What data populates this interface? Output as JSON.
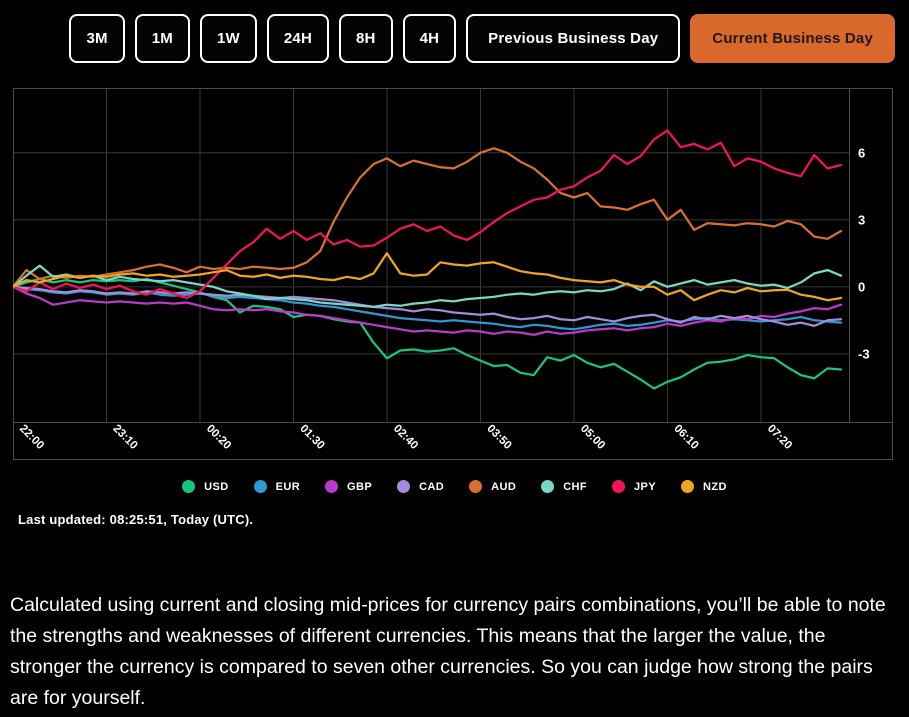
{
  "toolbar": {
    "buttons": [
      {
        "label": "3M",
        "active": false
      },
      {
        "label": "1M",
        "active": false
      },
      {
        "label": "1W",
        "active": false
      },
      {
        "label": "24H",
        "active": false
      },
      {
        "label": "8H",
        "active": false
      },
      {
        "label": "4H",
        "active": false
      },
      {
        "label": "Previous Business Day",
        "active": false
      },
      {
        "label": "Current Business Day",
        "active": true
      }
    ]
  },
  "chart_data": {
    "type": "line",
    "title": "Currency strength lines, value vs time (UTC)",
    "x_tick_labels": [
      "22:00",
      "23:10",
      "00:20",
      "01:30",
      "02:40",
      "03:50",
      "05:00",
      "06:10",
      "07:20"
    ],
    "y_ticks": [
      6,
      3,
      0,
      -3
    ],
    "y_tick_labels": [
      "6",
      "3",
      "0",
      "-3"
    ],
    "ylim": [
      -6.05,
      8.9
    ],
    "x_start": "22:00",
    "x_end": "08:20",
    "x_minutes_step": 10,
    "minutes_per_tick": 70,
    "grid": true,
    "legend_position": "bottom",
    "series": [
      {
        "name": "USD",
        "color": "#19C57C",
        "values": [
          0,
          0.2,
          0.35,
          0.2,
          0.3,
          0.2,
          0.3,
          0.25,
          0.3,
          0.25,
          0.35,
          0.2,
          0.05,
          -0.1,
          -0.25,
          -0.45,
          -0.6,
          -1.15,
          -0.85,
          -0.9,
          -1.0,
          -1.35,
          -1.25,
          -1.3,
          -1.45,
          -1.55,
          -1.6,
          -2.5,
          -3.2,
          -2.85,
          -2.8,
          -2.9,
          -2.85,
          -2.75,
          -3.05,
          -3.3,
          -3.55,
          -3.5,
          -3.85,
          -3.95,
          -3.15,
          -3.3,
          -3.05,
          -3.4,
          -3.6,
          -3.45,
          -3.8,
          -4.15,
          -4.55,
          -4.25,
          -4.05,
          -3.7,
          -3.4,
          -3.35,
          -3.25,
          -3.05,
          -3.15,
          -3.2,
          -3.6,
          -3.95,
          -4.1,
          -3.65,
          -3.7
        ]
      },
      {
        "name": "EUR",
        "color": "#2E97D4",
        "values": [
          0,
          -0.1,
          -0.15,
          -0.25,
          -0.3,
          -0.2,
          -0.25,
          -0.35,
          -0.3,
          -0.35,
          -0.25,
          -0.35,
          -0.4,
          -0.35,
          -0.3,
          -0.4,
          -0.5,
          -0.45,
          -0.5,
          -0.55,
          -0.6,
          -0.7,
          -0.75,
          -0.85,
          -0.9,
          -1.0,
          -1.1,
          -1.2,
          -1.3,
          -1.4,
          -1.45,
          -1.5,
          -1.55,
          -1.5,
          -1.55,
          -1.6,
          -1.65,
          -1.75,
          -1.8,
          -1.7,
          -1.75,
          -1.85,
          -1.9,
          -1.8,
          -1.7,
          -1.65,
          -1.75,
          -1.7,
          -1.6,
          -1.5,
          -1.55,
          -1.45,
          -1.4,
          -1.5,
          -1.45,
          -1.5,
          -1.55,
          -1.5,
          -1.45,
          -1.35,
          -1.5,
          -1.55,
          -1.6
        ]
      },
      {
        "name": "GBP",
        "color": "#B93ACB",
        "values": [
          0,
          -0.3,
          -0.5,
          -0.8,
          -0.7,
          -0.6,
          -0.65,
          -0.7,
          -0.65,
          -0.7,
          -0.75,
          -0.7,
          -0.75,
          -0.7,
          -0.85,
          -1.0,
          -1.05,
          -1.0,
          -1.05,
          -1.0,
          -1.1,
          -1.15,
          -1.25,
          -1.3,
          -1.4,
          -1.5,
          -1.6,
          -1.7,
          -1.8,
          -1.9,
          -2.0,
          -1.95,
          -2.0,
          -2.05,
          -1.95,
          -2.0,
          -2.1,
          -2.0,
          -2.05,
          -2.15,
          -2.0,
          -2.1,
          -2.05,
          -1.95,
          -1.9,
          -1.85,
          -1.95,
          -1.85,
          -1.8,
          -1.65,
          -1.75,
          -1.6,
          -1.5,
          -1.55,
          -1.4,
          -1.45,
          -1.3,
          -1.35,
          -1.2,
          -1.1,
          -0.95,
          -1.0,
          -0.8
        ]
      },
      {
        "name": "CAD",
        "color": "#A58BD9",
        "values": [
          0,
          -0.05,
          -0.1,
          -0.2,
          -0.25,
          -0.15,
          -0.2,
          -0.3,
          -0.25,
          -0.3,
          -0.2,
          -0.25,
          -0.3,
          -0.25,
          -0.3,
          -0.35,
          -0.4,
          -0.35,
          -0.4,
          -0.45,
          -0.5,
          -0.45,
          -0.5,
          -0.55,
          -0.6,
          -0.7,
          -0.8,
          -0.9,
          -0.95,
          -1.0,
          -1.1,
          -1.0,
          -1.05,
          -1.15,
          -1.2,
          -1.25,
          -1.2,
          -1.35,
          -1.45,
          -1.4,
          -1.3,
          -1.45,
          -1.5,
          -1.35,
          -1.45,
          -1.55,
          -1.4,
          -1.3,
          -1.25,
          -1.45,
          -1.6,
          -1.35,
          -1.45,
          -1.3,
          -1.4,
          -1.3,
          -1.45,
          -1.55,
          -1.7,
          -1.6,
          -1.75,
          -1.5,
          -1.45
        ]
      },
      {
        "name": "AUD",
        "color": "#D8702E",
        "values": [
          0,
          0.75,
          0.35,
          0.5,
          0.4,
          0.5,
          0.45,
          0.55,
          0.65,
          0.75,
          0.9,
          1.0,
          0.85,
          0.65,
          0.9,
          0.8,
          0.85,
          0.8,
          0.9,
          0.85,
          0.8,
          0.85,
          1.1,
          1.6,
          2.9,
          4.0,
          4.9,
          5.5,
          5.75,
          5.4,
          5.65,
          5.5,
          5.35,
          5.3,
          5.6,
          6.0,
          6.2,
          6.0,
          5.6,
          5.3,
          4.8,
          4.2,
          4.0,
          4.2,
          3.6,
          3.55,
          3.45,
          3.7,
          3.9,
          3.0,
          3.45,
          2.55,
          2.85,
          2.8,
          2.75,
          2.85,
          2.8,
          2.7,
          2.95,
          2.8,
          2.25,
          2.15,
          2.5
        ]
      },
      {
        "name": "CHF",
        "color": "#7BD7C5",
        "values": [
          0,
          0.5,
          0.95,
          0.45,
          0.55,
          0.4,
          0.5,
          0.3,
          0.45,
          0.35,
          0.3,
          0.25,
          0.3,
          0.2,
          0.1,
          0.0,
          -0.2,
          -0.3,
          -0.4,
          -0.55,
          -0.5,
          -0.55,
          -0.6,
          -0.7,
          -0.75,
          -0.8,
          -0.85,
          -0.9,
          -0.8,
          -0.85,
          -0.75,
          -0.7,
          -0.6,
          -0.65,
          -0.55,
          -0.5,
          -0.45,
          -0.35,
          -0.3,
          -0.35,
          -0.25,
          -0.2,
          -0.25,
          -0.15,
          -0.2,
          -0.1,
          0.15,
          -0.15,
          0.25,
          0.0,
          0.15,
          0.3,
          0.1,
          0.2,
          0.3,
          0.15,
          0.05,
          0.1,
          -0.05,
          0.2,
          0.6,
          0.75,
          0.5
        ]
      },
      {
        "name": "JPY",
        "color": "#F0145C",
        "values": [
          0,
          -0.2,
          0.2,
          -0.1,
          0.15,
          -0.05,
          0.1,
          -0.1,
          0.05,
          -0.2,
          -0.35,
          -0.1,
          -0.3,
          -0.5,
          -0.2,
          0.4,
          1.0,
          1.6,
          2.0,
          2.6,
          2.15,
          2.5,
          2.1,
          2.4,
          1.9,
          2.1,
          1.8,
          1.85,
          2.2,
          2.6,
          2.8,
          2.5,
          2.7,
          2.3,
          2.1,
          2.45,
          2.9,
          3.3,
          3.6,
          3.9,
          4.0,
          4.35,
          4.5,
          4.9,
          5.2,
          5.9,
          5.5,
          5.85,
          6.6,
          7.0,
          6.25,
          6.4,
          6.15,
          6.45,
          5.4,
          5.75,
          5.6,
          5.3,
          5.1,
          4.95,
          5.9,
          5.3,
          5.45
        ]
      },
      {
        "name": "NZD",
        "color": "#F0A51F",
        "values": [
          0,
          0.3,
          0.2,
          0.35,
          0.5,
          0.4,
          0.5,
          0.45,
          0.55,
          0.6,
          0.5,
          0.55,
          0.45,
          0.5,
          0.55,
          0.65,
          0.75,
          0.5,
          0.45,
          0.55,
          0.4,
          0.5,
          0.45,
          0.35,
          0.3,
          0.45,
          0.35,
          0.6,
          1.5,
          0.6,
          0.5,
          0.55,
          1.1,
          1.0,
          0.95,
          1.05,
          1.1,
          0.9,
          0.7,
          0.6,
          0.55,
          0.4,
          0.3,
          0.25,
          0.2,
          0.3,
          0.1,
          0.0,
          0.0,
          -0.35,
          -0.15,
          -0.6,
          -0.35,
          -0.15,
          -0.25,
          -0.05,
          -0.2,
          -0.15,
          -0.13,
          -0.35,
          -0.45,
          -0.6,
          -0.5
        ]
      }
    ]
  },
  "status": {
    "last_updated": "Last updated: 08:25:51, Today (UTC)."
  },
  "description": "Calculated using current and closing mid-prices for currency pairs combinations, you’ll be able to note the strengths and weaknesses of different currencies. This means that the larger the value, the stronger the currency is compared to seven other currencies. So you can judge how strong the pairs are for yourself.",
  "colors": {
    "background": "#000000",
    "accent_orange": "#D8682B",
    "grid": "#383838",
    "border": "#4B4B4B",
    "text": "#FFFFFF",
    "active_button_text": "#221813"
  }
}
